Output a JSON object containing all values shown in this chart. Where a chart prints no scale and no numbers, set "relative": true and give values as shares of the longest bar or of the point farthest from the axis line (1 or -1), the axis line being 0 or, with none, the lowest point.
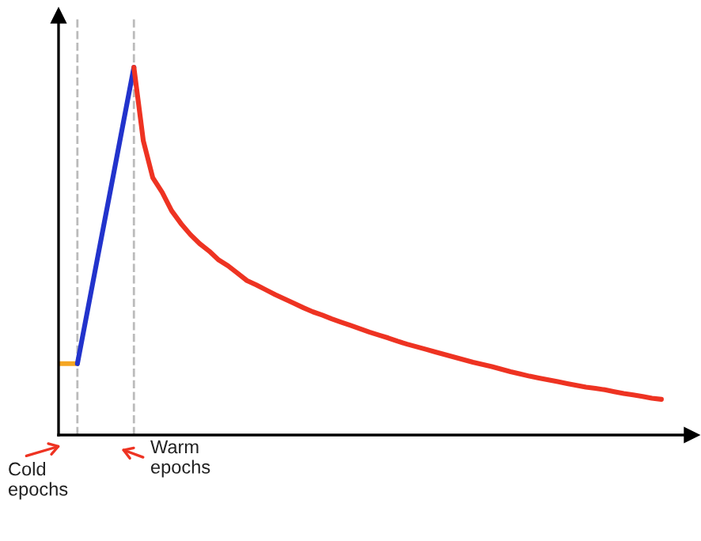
{
  "chart_data": {
    "type": "line",
    "relative": true,
    "marker": "none",
    "line_style": "solid",
    "categories": [
      null,
      null,
      null,
      null,
      null,
      null,
      null,
      null,
      null,
      null,
      null,
      null,
      null,
      null,
      null,
      null,
      null,
      null,
      null,
      null,
      null,
      null,
      null,
      null,
      null,
      null,
      null,
      null,
      null,
      null,
      null,
      null,
      null,
      null,
      null,
      null,
      null,
      null,
      null,
      null,
      null,
      null,
      null,
      null,
      null,
      null,
      null,
      null,
      null,
      null,
      null,
      null,
      null,
      null,
      null,
      null,
      null,
      null,
      null,
      null,
      null,
      null,
      null,
      null,
      null
    ],
    "series": [
      {
        "color": "#f5a623",
        "values": [
          0.194,
          0.194,
          0.194,
          null,
          null,
          null,
          null,
          null,
          null,
          null,
          null,
          null,
          null,
          null,
          null,
          null,
          null,
          null,
          null,
          null,
          null,
          null,
          null,
          null,
          null,
          null,
          null,
          null,
          null,
          null,
          null,
          null,
          null,
          null,
          null,
          null,
          null,
          null,
          null,
          null,
          null,
          null,
          null,
          null,
          null,
          null,
          null,
          null,
          null,
          null,
          null,
          null,
          null,
          null,
          null,
          null,
          null,
          null,
          null,
          null,
          null,
          null,
          null,
          null,
          null
        ]
      },
      {
        "color": "#2233cc",
        "values": [
          null,
          null,
          0.194,
          0.328,
          0.463,
          0.597,
          0.731,
          0.866,
          1,
          null,
          null,
          null,
          null,
          null,
          null,
          null,
          null,
          null,
          null,
          null,
          null,
          null,
          null,
          null,
          null,
          null,
          null,
          null,
          null,
          null,
          null,
          null,
          null,
          null,
          null,
          null,
          null,
          null,
          null,
          null,
          null,
          null,
          null,
          null,
          null,
          null,
          null,
          null,
          null,
          null,
          null,
          null,
          null,
          null,
          null,
          null,
          null,
          null,
          null,
          null,
          null,
          null,
          null,
          null,
          null
        ]
      },
      {
        "color": "#ee3322",
        "values": [
          null,
          null,
          null,
          null,
          null,
          null,
          null,
          null,
          1,
          0.8,
          0.7,
          0.66,
          0.61,
          0.575,
          0.545,
          0.52,
          0.5,
          0.476,
          0.46,
          0.44,
          0.42,
          0.408,
          0.395,
          0.382,
          0.37,
          0.358,
          0.346,
          0.335,
          0.326,
          0.316,
          0.307,
          0.298,
          0.289,
          0.28,
          0.272,
          0.264,
          0.255,
          0.247,
          0.24,
          0.233,
          0.226,
          0.219,
          0.212,
          0.205,
          0.198,
          0.192,
          0.186,
          0.179,
          0.172,
          0.166,
          0.16,
          0.155,
          0.15,
          0.145,
          0.14,
          0.135,
          0.13,
          0.127,
          0.123,
          0.118,
          0.113,
          0.109,
          0.105,
          0.1,
          0.097
        ]
      }
    ],
    "annotations": [
      "Cold\nepochs",
      "Warm\nepochs"
    ]
  }
}
